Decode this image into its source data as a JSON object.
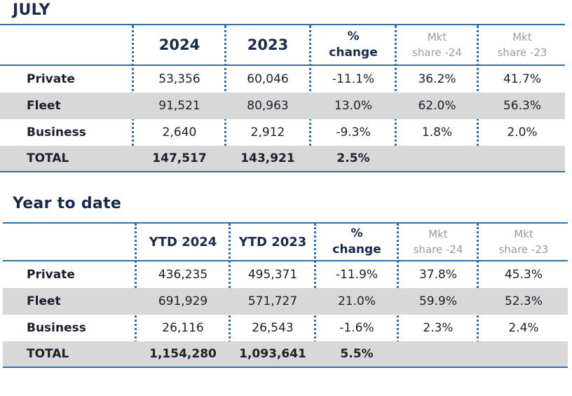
{
  "colors": {
    "accent": "#2f6fb0",
    "title": "#1b2a4a",
    "shade": "#d8d8d8",
    "muted": "#9a9aa8"
  },
  "july": {
    "title": "JULY",
    "headers": {
      "c2024": "2024",
      "c2023": "2023",
      "pct1": "%",
      "pct2": "change",
      "mkt24a": "Mkt",
      "mkt24b": "share -24",
      "mkt23a": "Mkt",
      "mkt23b": "share -23"
    },
    "rows": [
      {
        "label": "Private",
        "v2024": "53,356",
        "v2023": "60,046",
        "change": "-11.1%",
        "mkt24": "36.2%",
        "mkt23": "41.7%"
      },
      {
        "label": "Fleet",
        "v2024": "91,521",
        "v2023": "80,963",
        "change": "13.0%",
        "mkt24": "62.0%",
        "mkt23": "56.3%"
      },
      {
        "label": "Business",
        "v2024": "2,640",
        "v2023": "2,912",
        "change": "-9.3%",
        "mkt24": "1.8%",
        "mkt23": "2.0%"
      },
      {
        "label": "TOTAL",
        "v2024": "147,517",
        "v2023": "143,921",
        "change": "2.5%",
        "mkt24": "",
        "mkt23": ""
      }
    ]
  },
  "ytd": {
    "title": "Year to date",
    "headers": {
      "c2024": "YTD 2024",
      "c2023": "YTD 2023",
      "pct1": "%",
      "pct2": "change",
      "mkt24a": "Mkt",
      "mkt24b": "share -24",
      "mkt23a": "Mkt",
      "mkt23b": "share -23"
    },
    "rows": [
      {
        "label": "Private",
        "v2024": "436,235",
        "v2023": "495,371",
        "change": "-11.9%",
        "mkt24": "37.8%",
        "mkt23": "45.3%"
      },
      {
        "label": "Fleet",
        "v2024": "691,929",
        "v2023": "571,727",
        "change": "21.0%",
        "mkt24": "59.9%",
        "mkt23": "52.3%"
      },
      {
        "label": "Business",
        "v2024": "26,116",
        "v2023": "26,543",
        "change": "-1.6%",
        "mkt24": "2.3%",
        "mkt23": "2.4%"
      },
      {
        "label": "TOTAL",
        "v2024": "1,154,280",
        "v2023": "1,093,641",
        "change": "5.5%",
        "mkt24": "",
        "mkt23": ""
      }
    ]
  }
}
